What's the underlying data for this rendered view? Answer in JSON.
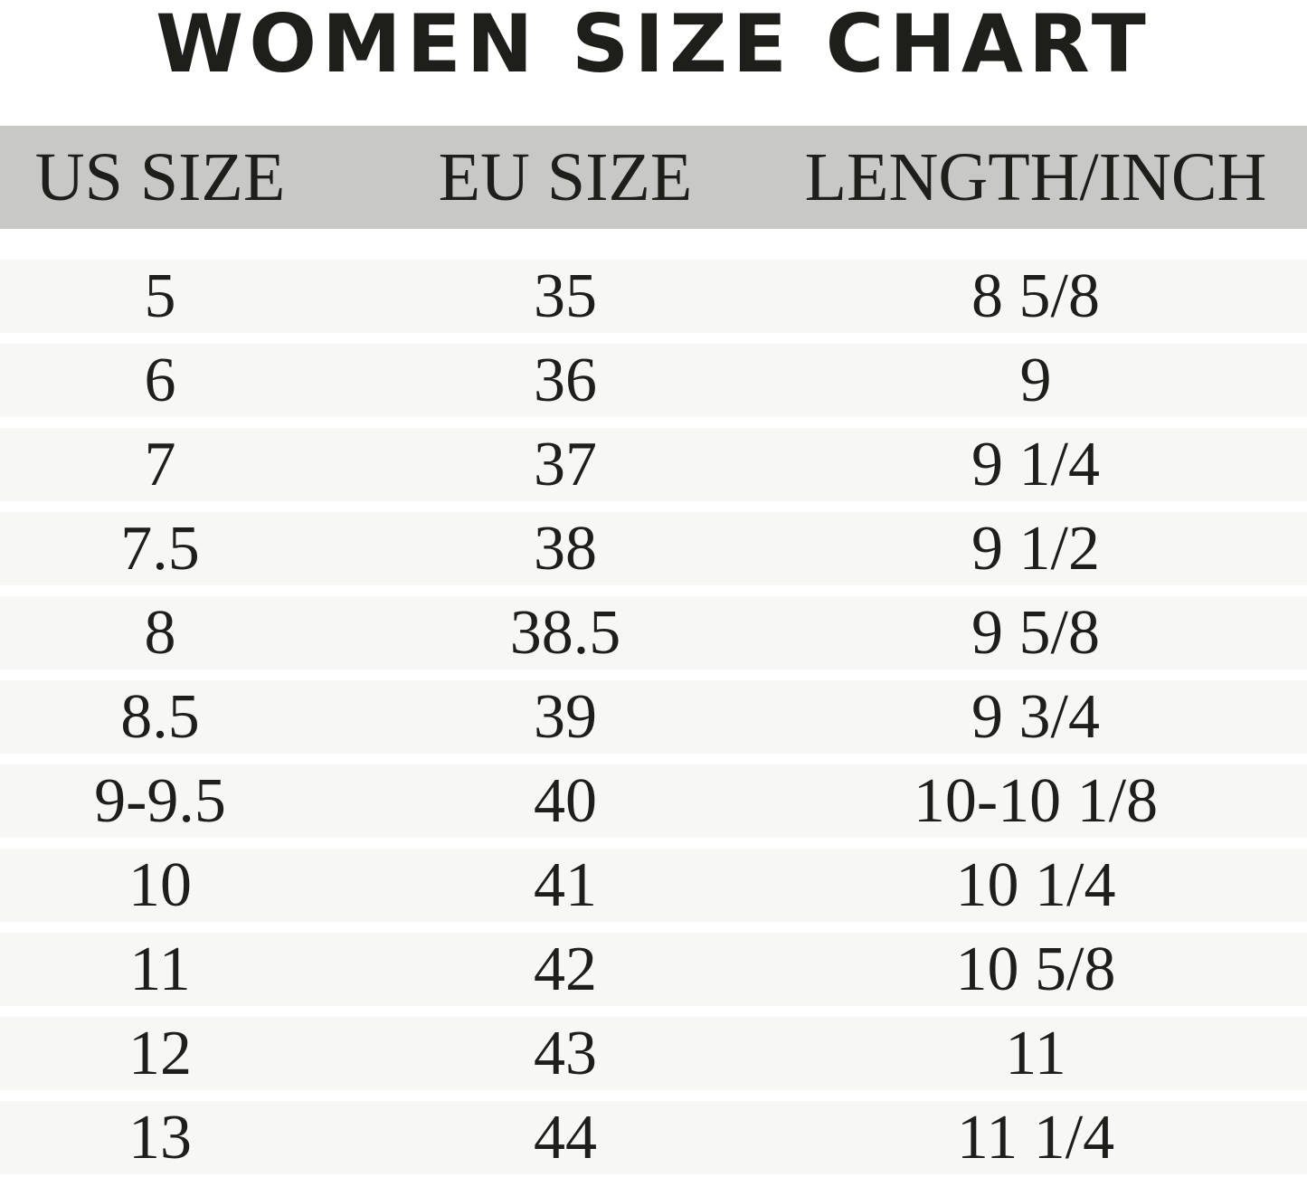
{
  "chart_data": {
    "type": "table",
    "title": "WOMEN SIZE CHART",
    "columns": [
      "US SIZE",
      "EU SIZE",
      "LENGTH/INCH"
    ],
    "rows": [
      [
        "5",
        "35",
        "8 5/8"
      ],
      [
        "6",
        "36",
        "9"
      ],
      [
        "7",
        "37",
        "9 1/4"
      ],
      [
        "7.5",
        "38",
        "9 1/2"
      ],
      [
        "8",
        "38.5",
        "9 5/8"
      ],
      [
        "8.5",
        "39",
        "9 3/4"
      ],
      [
        "9-9.5",
        "40",
        "10-10 1/8"
      ],
      [
        "10",
        "41",
        "10 1/4"
      ],
      [
        "11",
        "42",
        "10 5/8"
      ],
      [
        "12",
        "43",
        "11"
      ],
      [
        "13",
        "44",
        "11 1/4"
      ]
    ],
    "colors": {
      "header_bg": "#c8c8c6",
      "row_bg": "#f7f7f5",
      "text": "#1e1e1a"
    }
  }
}
